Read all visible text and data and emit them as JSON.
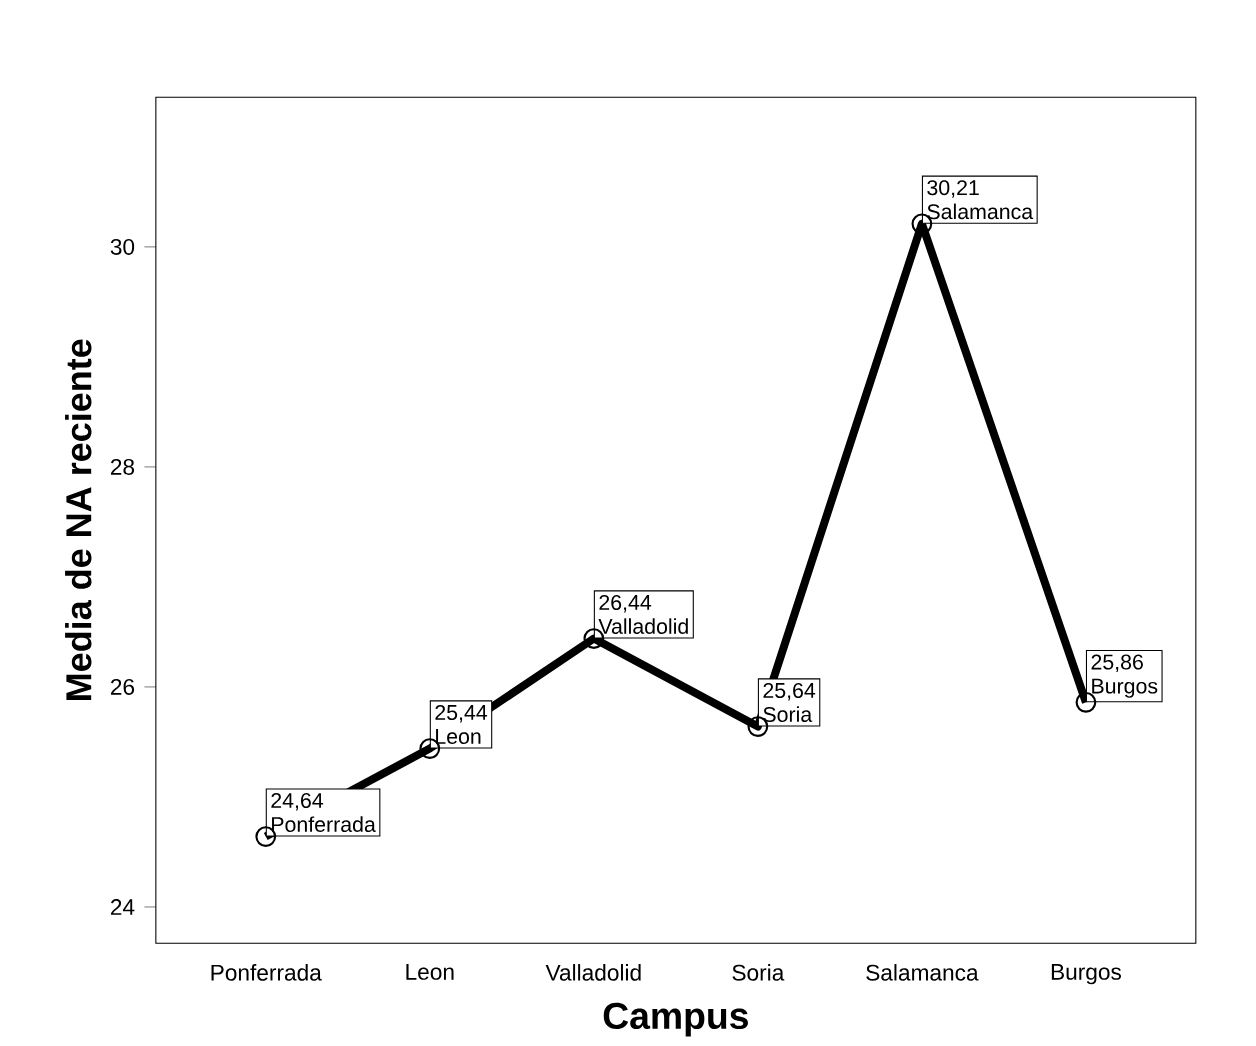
{
  "chart_data": {
    "type": "line",
    "xlabel": "Campus",
    "ylabel": "Media de NA reciente",
    "categories": [
      "Ponferrada",
      "Leon",
      "Valladolid",
      "Soria",
      "Salamanca",
      "Burgos"
    ],
    "values": [
      24.64,
      25.44,
      26.44,
      25.64,
      30.21,
      25.86
    ],
    "value_labels": [
      "24,64",
      "25,44",
      "26,44",
      "25,64",
      "30,21",
      "25,86"
    ],
    "color": "#000000",
    "marker": "circle",
    "line_style": "solid",
    "grid": false,
    "ylim": [
      23.67,
      31.36
    ],
    "yticks": [
      24,
      26,
      28,
      30
    ]
  }
}
